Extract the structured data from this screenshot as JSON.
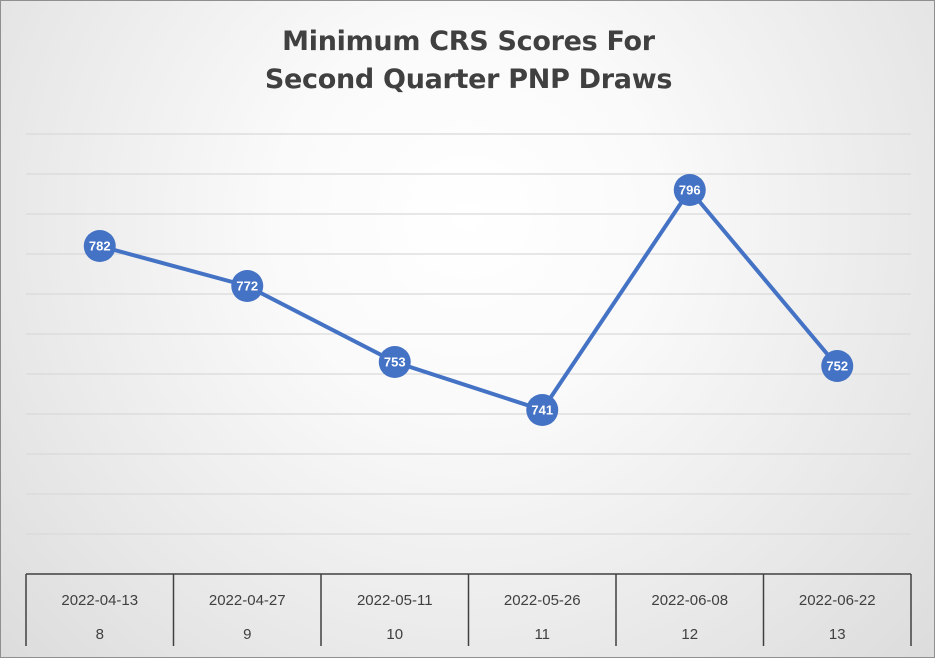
{
  "chart_data": {
    "type": "line",
    "title_lines": [
      "Minimum CRS Scores For",
      "Second Quarter PNP Draws"
    ],
    "categories": [
      "2022-04-13",
      "2022-04-27",
      "2022-05-11",
      "2022-05-26",
      "2022-06-08",
      "2022-06-22"
    ],
    "draw_numbers": [
      "8",
      "9",
      "10",
      "11",
      "12",
      "13"
    ],
    "series": [
      {
        "values": [
          782,
          772,
          753,
          741,
          796,
          752
        ],
        "color": "#4472c4"
      }
    ],
    "data_labels": [
      "782",
      "772",
      "753",
      "741",
      "796",
      "752"
    ],
    "ylim": [
      700,
      810
    ],
    "y_gridlines": [
      710,
      720,
      730,
      740,
      750,
      760,
      770,
      780,
      790,
      800,
      810
    ],
    "grid": true,
    "legend": "none",
    "colors": {
      "line": "#4472c4",
      "grid": "#d9d9d9",
      "axis_table": "#404040",
      "label_text": "#ffffff"
    }
  }
}
